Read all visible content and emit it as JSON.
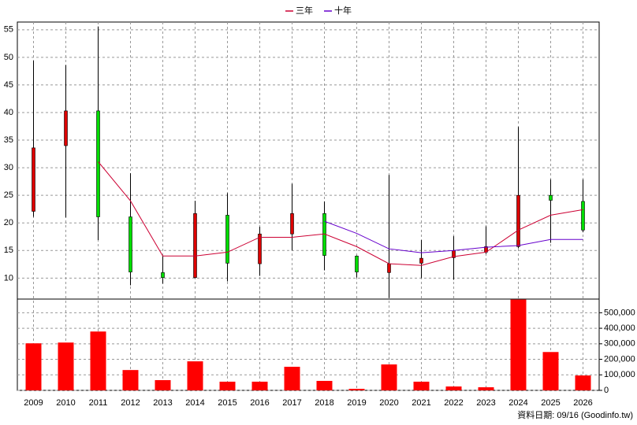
{
  "footer": "資料日期: 09/16 (Goodinfo.tw)",
  "chart_data": [
    {
      "type": "candlestick",
      "categories": [
        "2009",
        "2010",
        "2011",
        "2012",
        "2013",
        "2014",
        "2015",
        "2016",
        "2017",
        "2018",
        "2019",
        "2020",
        "2021",
        "2022",
        "2023",
        "2024",
        "2025",
        "2026"
      ],
      "open": [
        22.1,
        34.0,
        40.3,
        21.1,
        11.0,
        10.1,
        21.4,
        12.6,
        18.0,
        21.7,
        14.0,
        11.0,
        12.7,
        13.7,
        14.7,
        15.7,
        25.0,
        23.9
      ],
      "high": [
        49.4,
        48.6,
        55.6,
        29.0,
        14.0,
        24.0,
        25.4,
        19.3,
        27.1,
        23.9,
        14.1,
        28.7,
        16.9,
        17.6,
        19.4,
        37.4,
        27.9,
        27.9
      ],
      "low": [
        21.1,
        21.0,
        16.9,
        8.7,
        9.0,
        10.0,
        9.4,
        10.4,
        15.0,
        11.4,
        10.1,
        6.4,
        10.0,
        9.7,
        14.4,
        15.4,
        16.4,
        18.3
      ],
      "close": [
        33.6,
        40.3,
        21.1,
        11.1,
        10.1,
        21.7,
        12.7,
        18.0,
        21.7,
        14.1,
        11.1,
        12.6,
        13.6,
        15.0,
        15.7,
        25.0,
        24.1,
        18.7
      ],
      "up_color": "#dd0000",
      "down_color": "#00dd00",
      "series": [
        {
          "name": "三年",
          "color": "#cc0033",
          "values": [
            null,
            null,
            31.1,
            24.0,
            14.0,
            14.0,
            14.7,
            17.4,
            17.4,
            18.0,
            15.7,
            12.6,
            12.3,
            13.9,
            14.7,
            18.7,
            21.4,
            22.4
          ]
        },
        {
          "name": "十年",
          "color": "#6600cc",
          "values": [
            null,
            null,
            null,
            null,
            null,
            null,
            null,
            null,
            null,
            20.3,
            18.1,
            15.3,
            14.6,
            15.0,
            15.6,
            15.9,
            17.0,
            17.0
          ]
        }
      ],
      "ylim": [
        6.2,
        56.4
      ],
      "yticks": [
        10,
        15,
        20,
        25,
        30,
        35,
        40,
        45,
        50,
        55
      ],
      "grid": true,
      "legend": "top"
    },
    {
      "type": "bar",
      "color": "#ff0000",
      "values": [
        303000,
        308000,
        379000,
        131000,
        66000,
        187000,
        56000,
        56000,
        152000,
        61000,
        10000,
        167000,
        56000,
        25000,
        20000,
        585000,
        247000,
        96000
      ],
      "ylim": [
        0,
        588000
      ],
      "yticks": [
        0,
        {
          "value": 100000,
          "label": "100,000"
        },
        {
          "value": 200000,
          "label": "200,000"
        },
        {
          "value": 300000,
          "label": "300,000"
        },
        {
          "value": 400000,
          "label": "400,000"
        },
        {
          "value": 500000,
          "label": "500,000"
        }
      ],
      "grid": true
    }
  ]
}
